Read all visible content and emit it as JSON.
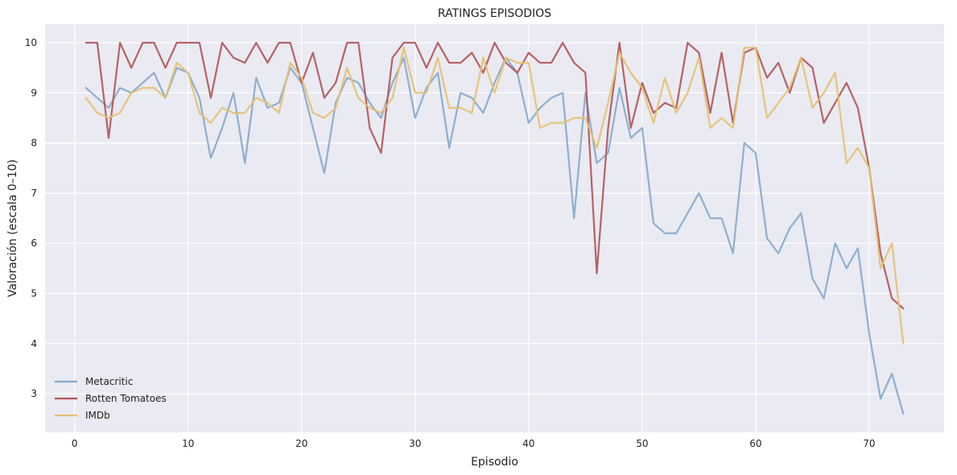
{
  "chart_data": {
    "type": "line",
    "title": "RATINGS EPISODIOS",
    "xlabel": "Episodio",
    "ylabel": "Valoración (escala 0–10)",
    "xlim": [
      -2.6,
      76.6
    ],
    "ylim": [
      2.23,
      10.37
    ],
    "xticks": [
      0,
      10,
      20,
      30,
      40,
      50,
      60,
      70
    ],
    "yticks": [
      3,
      4,
      5,
      6,
      7,
      8,
      9,
      10
    ],
    "grid": true,
    "legend_position": "lower-left",
    "x": [
      1,
      2,
      3,
      4,
      5,
      6,
      7,
      8,
      9,
      10,
      11,
      12,
      13,
      14,
      15,
      16,
      17,
      18,
      19,
      20,
      21,
      22,
      23,
      24,
      25,
      26,
      27,
      28,
      29,
      30,
      31,
      32,
      33,
      34,
      35,
      36,
      37,
      38,
      39,
      40,
      41,
      42,
      43,
      44,
      45,
      46,
      47,
      48,
      49,
      50,
      51,
      52,
      53,
      54,
      55,
      56,
      57,
      58,
      59,
      60,
      61,
      62,
      63,
      64,
      65,
      66,
      67,
      68,
      69,
      70,
      71,
      72,
      73
    ],
    "series": [
      {
        "name": "Metacritic",
        "color": "#85a9cc",
        "values": [
          9.1,
          8.9,
          8.7,
          9.1,
          9.0,
          9.2,
          9.4,
          8.9,
          9.5,
          9.4,
          8.9,
          7.7,
          8.3,
          9.0,
          7.6,
          9.3,
          8.7,
          8.8,
          9.5,
          9.2,
          8.3,
          7.4,
          8.8,
          9.3,
          9.2,
          8.8,
          8.5,
          9.2,
          9.7,
          8.5,
          9.1,
          9.4,
          7.9,
          9.0,
          8.9,
          8.6,
          9.2,
          9.7,
          9.4,
          8.4,
          8.7,
          8.9,
          9.0,
          6.5,
          9.0,
          7.6,
          7.8,
          9.1,
          8.1,
          8.3,
          6.4,
          6.2,
          6.2,
          6.6,
          7.0,
          6.5,
          6.5,
          5.8,
          8.0,
          7.8,
          6.1,
          5.8,
          6.3,
          6.6,
          5.3,
          4.9,
          6.0,
          5.5,
          5.9,
          4.2,
          2.9,
          3.4,
          2.6
        ]
      },
      {
        "name": "Rotten Tomatoes",
        "color": "#b05658",
        "values": [
          10.0,
          10.0,
          8.1,
          10.0,
          9.5,
          10.0,
          10.0,
          9.5,
          10.0,
          10.0,
          10.0,
          8.9,
          10.0,
          9.7,
          9.6,
          10.0,
          9.6,
          10.0,
          10.0,
          9.2,
          9.8,
          8.9,
          9.2,
          10.0,
          10.0,
          8.3,
          7.8,
          9.7,
          10.0,
          10.0,
          9.5,
          10.0,
          9.6,
          9.6,
          9.8,
          9.4,
          10.0,
          9.6,
          9.4,
          9.8,
          9.6,
          9.6,
          10.0,
          9.6,
          9.4,
          5.4,
          8.3,
          10.0,
          8.3,
          9.2,
          8.6,
          8.8,
          8.7,
          10.0,
          9.8,
          8.6,
          9.8,
          8.4,
          9.8,
          9.9,
          9.3,
          9.6,
          9.0,
          9.7,
          9.5,
          8.4,
          8.8,
          9.2,
          8.7,
          7.5,
          5.8,
          4.9,
          4.7
        ]
      },
      {
        "name": "IMDb",
        "color": "#e5c070",
        "values": [
          8.9,
          8.6,
          8.5,
          8.6,
          9.0,
          9.1,
          9.1,
          8.9,
          9.6,
          9.4,
          8.6,
          8.4,
          8.7,
          8.6,
          8.6,
          8.9,
          8.8,
          8.6,
          9.6,
          9.3,
          8.6,
          8.5,
          8.7,
          9.5,
          8.9,
          8.7,
          8.6,
          8.9,
          9.9,
          9.0,
          9.0,
          9.7,
          8.7,
          8.7,
          8.6,
          9.7,
          9.0,
          9.7,
          9.6,
          9.6,
          8.3,
          8.4,
          8.4,
          8.5,
          8.5,
          7.9,
          8.8,
          9.8,
          9.4,
          9.1,
          8.4,
          9.3,
          8.6,
          9.0,
          9.7,
          8.3,
          8.5,
          8.3,
          9.9,
          9.9,
          8.5,
          8.8,
          9.1,
          9.7,
          8.7,
          9.0,
          9.4,
          7.6,
          7.9,
          7.5,
          5.5,
          6.0,
          4.0
        ]
      }
    ]
  }
}
